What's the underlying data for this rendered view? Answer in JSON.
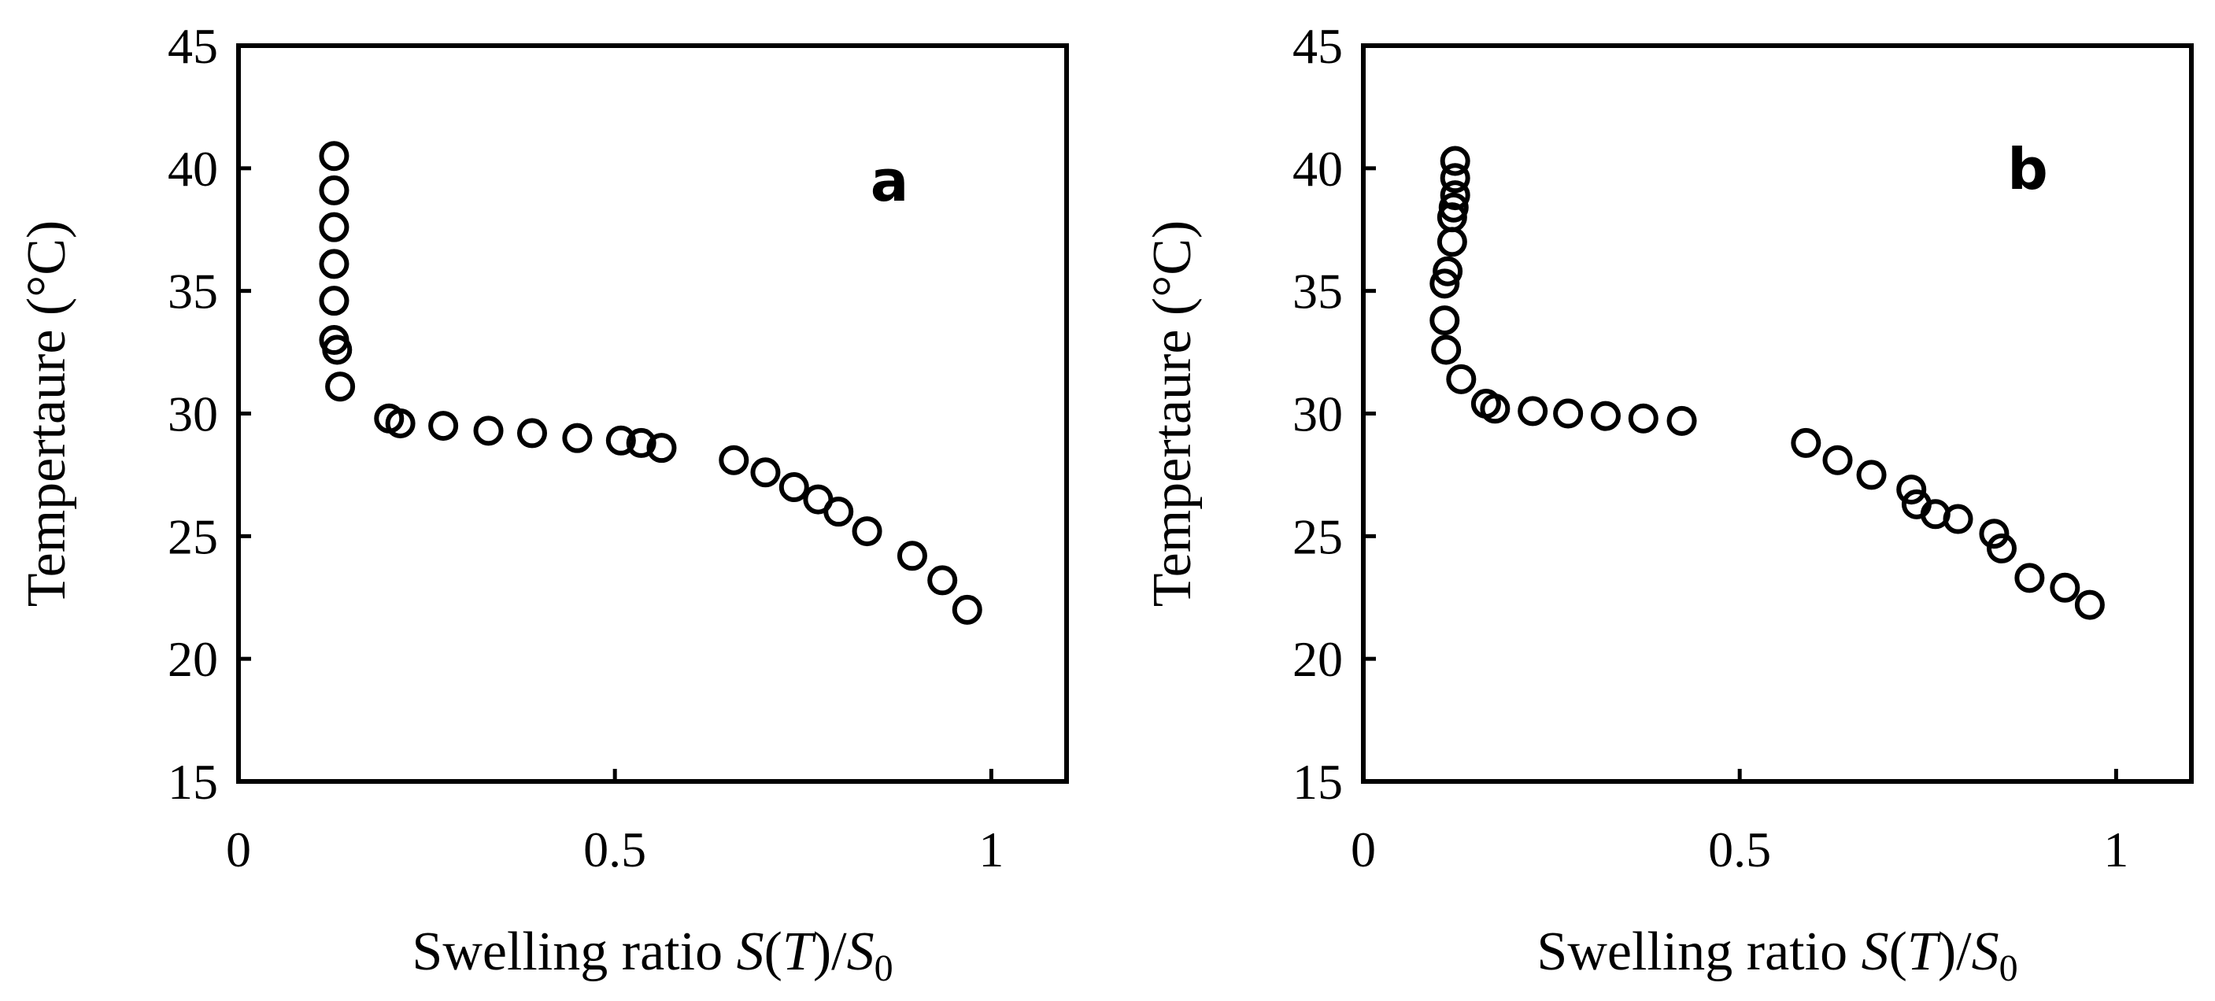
{
  "chart_data": [
    {
      "type": "scatter",
      "panel_label": "a",
      "xlabel": {
        "prefix": "Swelling ratio ",
        "S": "S",
        "T": "T",
        "sub": "0"
      },
      "ylabel": "Tempertaure (°C)",
      "xlim": [
        0,
        1.1
      ],
      "ylim": [
        15,
        45
      ],
      "xticks": [
        0,
        0.5,
        1
      ],
      "xtick_labels": [
        "0",
        "0.5",
        "1"
      ],
      "yticks": [
        15,
        20,
        25,
        30,
        35,
        40,
        45
      ],
      "ytick_labels": [
        "15",
        "20",
        "25",
        "30",
        "35",
        "40",
        "45"
      ],
      "marker": "open-circle",
      "series": [
        {
          "name": "a",
          "points": [
            [
              0.127,
              40.5
            ],
            [
              0.127,
              39.1
            ],
            [
              0.127,
              37.6
            ],
            [
              0.127,
              36.1
            ],
            [
              0.127,
              34.6
            ],
            [
              0.127,
              33.0
            ],
            [
              0.131,
              32.6
            ],
            [
              0.135,
              31.1
            ],
            [
              0.2,
              29.8
            ],
            [
              0.215,
              29.6
            ],
            [
              0.272,
              29.5
            ],
            [
              0.332,
              29.3
            ],
            [
              0.39,
              29.2
            ],
            [
              0.45,
              29.0
            ],
            [
              0.508,
              28.9
            ],
            [
              0.535,
              28.8
            ],
            [
              0.562,
              28.6
            ],
            [
              0.658,
              28.1
            ],
            [
              0.7,
              27.6
            ],
            [
              0.738,
              27.0
            ],
            [
              0.77,
              26.5
            ],
            [
              0.797,
              26.0
            ],
            [
              0.835,
              25.2
            ],
            [
              0.895,
              24.2
            ],
            [
              0.935,
              23.2
            ],
            [
              0.968,
              22.0
            ]
          ]
        }
      ]
    },
    {
      "type": "scatter",
      "panel_label": "b",
      "xlabel": {
        "prefix": "Swelling ratio ",
        "S": "S",
        "T": "T",
        "sub": "0"
      },
      "ylabel": "Tempertaure (°C)",
      "xlim": [
        0,
        1.1
      ],
      "ylim": [
        15,
        45
      ],
      "xticks": [
        0,
        0.5,
        1
      ],
      "xtick_labels": [
        "0",
        "0.5",
        "1"
      ],
      "yticks": [
        15,
        20,
        25,
        30,
        35,
        40,
        45
      ],
      "ytick_labels": [
        "15",
        "20",
        "25",
        "30",
        "35",
        "40",
        "45"
      ],
      "marker": "open-circle",
      "series": [
        {
          "name": "b",
          "points": [
            [
              0.122,
              40.3
            ],
            [
              0.122,
              39.6
            ],
            [
              0.122,
              38.9
            ],
            [
              0.12,
              38.4
            ],
            [
              0.118,
              38.0
            ],
            [
              0.118,
              37.0
            ],
            [
              0.112,
              35.8
            ],
            [
              0.108,
              35.3
            ],
            [
              0.108,
              33.8
            ],
            [
              0.11,
              32.6
            ],
            [
              0.13,
              31.4
            ],
            [
              0.163,
              30.4
            ],
            [
              0.175,
              30.2
            ],
            [
              0.225,
              30.1
            ],
            [
              0.272,
              30.0
            ],
            [
              0.322,
              29.9
            ],
            [
              0.372,
              29.8
            ],
            [
              0.423,
              29.7
            ],
            [
              0.588,
              28.8
            ],
            [
              0.63,
              28.1
            ],
            [
              0.675,
              27.5
            ],
            [
              0.728,
              26.9
            ],
            [
              0.735,
              26.3
            ],
            [
              0.76,
              25.9
            ],
            [
              0.79,
              25.7
            ],
            [
              0.838,
              25.1
            ],
            [
              0.848,
              24.5
            ],
            [
              0.885,
              23.3
            ],
            [
              0.932,
              22.9
            ],
            [
              0.965,
              22.2
            ]
          ]
        }
      ]
    }
  ]
}
